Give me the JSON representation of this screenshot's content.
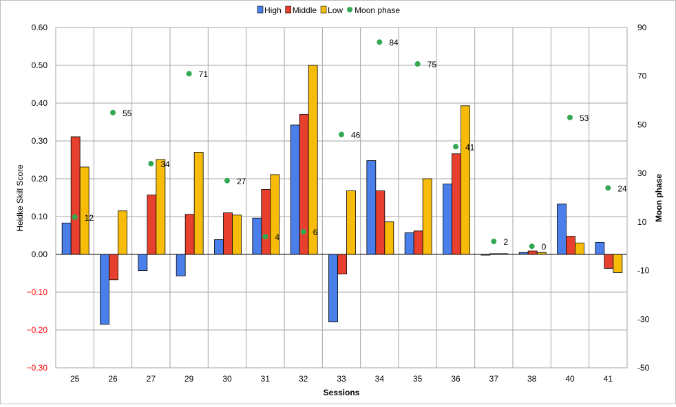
{
  "chart_data": {
    "type": "bar",
    "title": "",
    "categories": [
      "25",
      "26",
      "27",
      "29",
      "30",
      "31",
      "32",
      "33",
      "34",
      "35",
      "36",
      "37",
      "38",
      "40",
      "41"
    ],
    "series": [
      {
        "name": "High",
        "color": "#4a7ee8",
        "values": [
          0.083,
          -0.185,
          -0.043,
          -0.057,
          0.039,
          0.096,
          0.342,
          -0.178,
          0.248,
          0.057,
          0.186,
          -0.002,
          0.005,
          0.133,
          0.032
        ]
      },
      {
        "name": "Middle",
        "color": "#e8402e",
        "values": [
          0.311,
          -0.067,
          0.157,
          0.106,
          0.11,
          0.172,
          0.37,
          -0.052,
          0.168,
          0.062,
          0.266,
          0.002,
          0.009,
          0.048,
          -0.037
        ]
      },
      {
        "name": "Low",
        "color": "#f7bc0a",
        "values": [
          0.231,
          0.115,
          0.251,
          0.27,
          0.104,
          0.211,
          0.5,
          0.168,
          0.086,
          0.2,
          0.393,
          0.002,
          0.005,
          0.03,
          -0.048
        ]
      }
    ],
    "secondary_series": {
      "name": "Moon phase",
      "color": "#34a853",
      "type": "scatter",
      "values": [
        12,
        55,
        34,
        71,
        27,
        4,
        6,
        46,
        84,
        75,
        41,
        2,
        0,
        53,
        24
      ]
    },
    "xlabel": "Sessions",
    "ylabel": "Heidke Skill Score",
    "y2label": "Moon phase",
    "ylim": [
      -0.3,
      0.6
    ],
    "y2lim": [
      -50,
      90
    ],
    "y_ticks": [
      "0.60",
      "0.50",
      "0.40",
      "0.30",
      "0.20",
      "0.10",
      "0.00",
      "-0.10",
      "-0.20",
      "-0.30"
    ],
    "y2_ticks": [
      "90",
      "70",
      "50",
      "30",
      "10",
      "-10",
      "-30",
      "-50"
    ],
    "legend_position": "top-center",
    "grid": true
  }
}
